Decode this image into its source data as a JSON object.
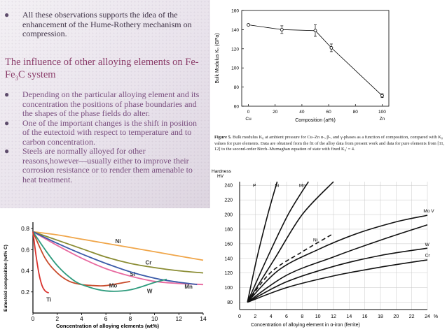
{
  "slide": {
    "bullet1": "All these observations supports the idea of the enhancement of the Hume-Rothery mechanism on compression.",
    "heading_pre": "The influence of other alloying elements on Fe-Fe",
    "heading_sub": "3",
    "heading_post": "C system",
    "bullets": [
      "Depending on the particular alloying element and its concentration the positions of phase boundaries and the shapes of the phase fields do alter.",
      "One of the important changes is the shift in position of the eutectoid with respect to temperature and to carbon concentration.",
      "Steels are normally alloyed for other reasons,however—usually either to improve their corrosion resistance or to render them amenable to heat treatment."
    ]
  },
  "figure5": {
    "caption_bold": "Figure 5.",
    "caption_text": " Bulk modulus K₀ at ambient pressure for Cu–Zn α-, β-, and γ-phases as a function of composition, compared with K₀ values for pure elements. Data are obtained from the fit of the alloy data from present work and data for pure elements from [11, 12] to the second-order Birch–Murnaghan equation of state with fixed K₀' = 4."
  },
  "chart_data": [
    {
      "type": "line",
      "title": "",
      "xlabel": "Composition (at%)",
      "ylabel": "Bulk Modulus K₀ (GPa)",
      "x_ticks": [
        0,
        20,
        40,
        60,
        80,
        100
      ],
      "y_ticks": [
        60,
        80,
        100,
        120,
        140,
        160
      ],
      "xlim": [
        -5,
        105
      ],
      "ylim": [
        60,
        160
      ],
      "x_end_labels": [
        "Cu",
        "Zn"
      ],
      "series": [
        {
          "x": [
            0,
            25,
            50,
            62,
            100
          ],
          "y": [
            145,
            140,
            139,
            121,
            71
          ],
          "err": [
            0,
            4,
            6,
            4,
            2
          ]
        }
      ]
    },
    {
      "type": "line",
      "title": "",
      "xlabel": "Concentration of alloying elements (wt%)",
      "ylabel": "Eutectoid composition (wt% C)",
      "x_ticks": [
        0,
        2,
        4,
        6,
        8,
        10,
        12,
        14
      ],
      "y_ticks": [
        0.2,
        0.4,
        0.6,
        0.8
      ],
      "y_tick_labels": [
        "0.2",
        "0.4",
        "0.6",
        "0.8"
      ],
      "xlim": [
        0,
        14
      ],
      "ylim": [
        0,
        0.86
      ],
      "series": [
        {
          "name": "Ni",
          "color": "#f0a64a",
          "x": [
            0,
            2,
            4,
            6,
            8,
            10,
            12,
            14
          ],
          "y": [
            0.77,
            0.74,
            0.7,
            0.66,
            0.62,
            0.58,
            0.54,
            0.5
          ]
        },
        {
          "name": "Cr",
          "color": "#8a8c33",
          "x": [
            0,
            2,
            4,
            6,
            8,
            10,
            12,
            14
          ],
          "y": [
            0.77,
            0.69,
            0.61,
            0.53,
            0.47,
            0.43,
            0.4,
            0.38
          ]
        },
        {
          "name": "Si",
          "color": "#e86aa0",
          "x": [
            0,
            2,
            4,
            6,
            8,
            10,
            12,
            14
          ],
          "y": [
            0.77,
            0.64,
            0.52,
            0.42,
            0.35,
            0.3,
            0.28,
            0.27
          ]
        },
        {
          "name": "Mn",
          "color": "#3a5aa8",
          "x": [
            0,
            2,
            4,
            6,
            8,
            10,
            11.5,
            13.5
          ],
          "y": [
            0.77,
            0.66,
            0.56,
            0.47,
            0.39,
            0.33,
            0.3,
            0.27
          ]
        },
        {
          "name": "Mo",
          "color": "#c84a2a",
          "x": [
            0,
            1,
            2,
            3,
            4,
            5,
            6,
            8
          ],
          "y": [
            0.77,
            0.52,
            0.38,
            0.3,
            0.27,
            0.26,
            0.26,
            0.3
          ]
        },
        {
          "name": "W",
          "color": "#2e9b7d",
          "x": [
            0,
            1,
            2,
            3,
            4,
            6,
            8,
            10,
            11
          ],
          "y": [
            0.77,
            0.6,
            0.45,
            0.34,
            0.27,
            0.21,
            0.22,
            0.29,
            0.32
          ]
        },
        {
          "name": "Ti",
          "color": "#d9332e",
          "x": [
            0,
            0.25,
            0.5,
            0.75,
            1,
            1.3
          ],
          "y": [
            0.77,
            0.55,
            0.37,
            0.26,
            0.21,
            0.19
          ]
        }
      ]
    },
    {
      "type": "line",
      "title": "",
      "xlabel": "Concentration of alloying element in α-iron (ferrite)",
      "ylabel": "Hardness HV",
      "ylabel_lines": [
        "Hardness",
        "HV"
      ],
      "x_ticks": [
        0,
        2,
        4,
        6,
        8,
        10,
        12,
        14,
        16,
        18,
        20,
        22,
        24
      ],
      "x_last_suffix": "%",
      "y_ticks": [
        80,
        100,
        120,
        140,
        160,
        180,
        200,
        220,
        240
      ],
      "xlim": [
        0,
        24
      ],
      "ylim": [
        70,
        245
      ],
      "series": [
        {
          "name": "P",
          "dash": false,
          "x": [
            1,
            2.2,
            3.6,
            4.8
          ],
          "y": [
            80,
            140,
            200,
            245
          ]
        },
        {
          "name": "Si",
          "dash": false,
          "x": [
            1,
            3.5,
            6.2,
            8.8
          ],
          "y": [
            80,
            140,
            200,
            245
          ]
        },
        {
          "name": "Mn",
          "dash": false,
          "x": [
            1,
            4.5,
            8,
            12
          ],
          "y": [
            80,
            140,
            200,
            245
          ]
        },
        {
          "name": "Ni",
          "dash": true,
          "x": [
            1,
            4,
            8,
            12
          ],
          "y": [
            80,
            121,
            149,
            174
          ]
        },
        {
          "name": "Mo V",
          "dash": false,
          "x": [
            1,
            5,
            10,
            15,
            20,
            24
          ],
          "y": [
            80,
            124,
            152,
            174,
            190,
            199
          ]
        },
        {
          "name": "",
          "dash": false,
          "x": [
            1,
            6,
            12,
            18,
            24
          ],
          "y": [
            80,
            117,
            142,
            165,
            186
          ]
        },
        {
          "name": "W",
          "dash": false,
          "x": [
            1,
            6,
            12,
            18,
            24
          ],
          "y": [
            80,
            108,
            129,
            144,
            154
          ]
        },
        {
          "name": "Cr",
          "dash": false,
          "x": [
            1,
            6,
            12,
            18,
            24
          ],
          "y": [
            80,
            100,
            116,
            128,
            138
          ]
        }
      ]
    }
  ]
}
